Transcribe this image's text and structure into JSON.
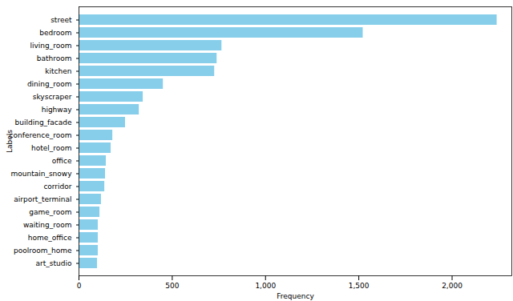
{
  "chart_data": {
    "type": "bar",
    "orientation": "horizontal",
    "xlabel": "Frequency",
    "ylabel": "Labels",
    "categories": [
      "street",
      "bedroom",
      "living_room",
      "bathroom",
      "kitchen",
      "dining_room",
      "skyscraper",
      "highway",
      "building_facade",
      "conference_room",
      "hotel_room",
      "office",
      "mountain_snowy",
      "corridor",
      "airport_terminal",
      "game_room",
      "waiting_room",
      "home_office",
      "poolroom_home",
      "art_studio"
    ],
    "values": [
      2241,
      1523,
      766,
      740,
      727,
      452,
      344,
      323,
      249,
      181,
      172,
      146,
      142,
      138,
      120,
      112,
      103,
      103,
      103,
      99
    ],
    "color": "#87ceeb",
    "xlim": [
      0,
      2320
    ],
    "xticks": [
      0,
      500,
      1000,
      1500,
      2000
    ]
  }
}
